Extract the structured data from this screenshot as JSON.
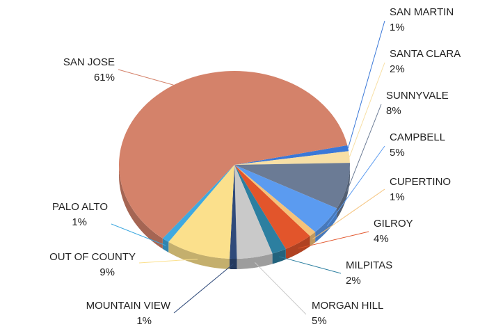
{
  "chart_data": {
    "type": "pie",
    "categories": [
      "SAN MARTIN",
      "SANTA CLARA",
      "SUNNYVALE",
      "CAMPBELL",
      "CUPERTINO",
      "GILROY",
      "MILPITAS",
      "MORGAN HILL",
      "MOUNTAIN VIEW",
      "OUT OF COUNTY",
      "PALO ALTO",
      "SAN JOSE"
    ],
    "values": [
      1,
      2,
      8,
      5,
      1,
      4,
      2,
      5,
      1,
      9,
      1,
      61
    ],
    "value_labels": [
      "1%",
      "2%",
      "8%",
      "5%",
      "1%",
      "4%",
      "2%",
      "5%",
      "1%",
      "9%",
      "1%",
      "61%"
    ],
    "colors": [
      "#3a78d8",
      "#f7dfa5",
      "#6b7b95",
      "#5b9bf0",
      "#f5c27a",
      "#e2552b",
      "#2c7fa0",
      "#c9c9c9",
      "#2f4a7a",
      "#fbe08c",
      "#3fa9e0",
      "#d4826a"
    ]
  }
}
